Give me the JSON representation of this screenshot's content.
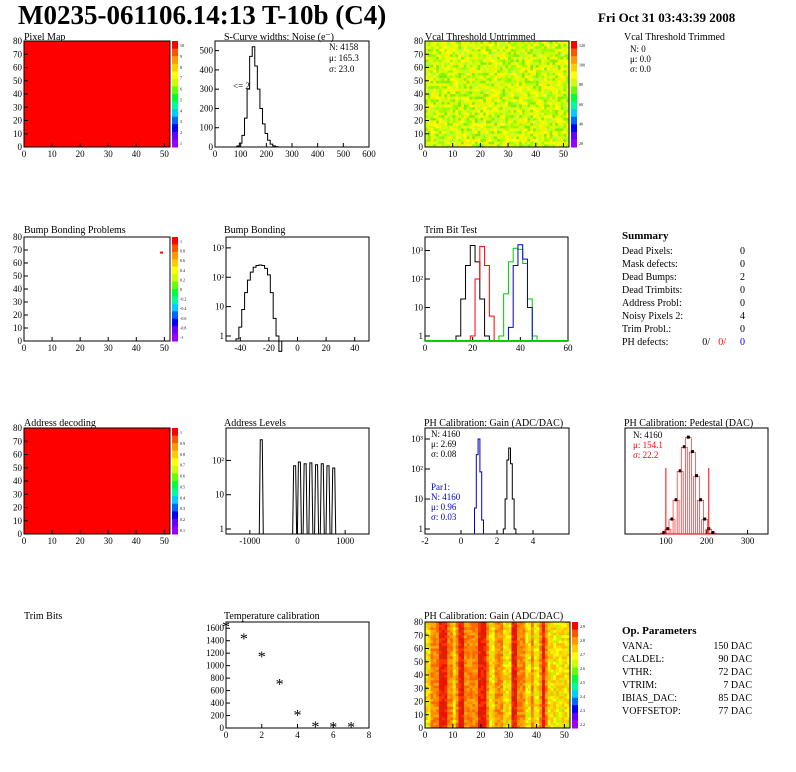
{
  "header": {
    "title": "M0235-061106.14:13 T-10b (C4)",
    "date": "Fri Oct 31 03:43:39 2008"
  },
  "colors": {
    "red": "#ff0000",
    "blue": "#0000cc",
    "green": "#00cc00",
    "black": "#000000"
  },
  "chart_data": [
    {
      "id": "pixel-map",
      "type": "heatmap",
      "title": "Pixel Map",
      "xlim": [
        0,
        52
      ],
      "ylim": [
        0,
        80
      ],
      "xticks": [
        "0",
        "10",
        "20",
        "30",
        "40",
        "50"
      ],
      "yticks": [
        "0",
        "10",
        "20",
        "30",
        "40",
        "50",
        "60",
        "70",
        "80"
      ],
      "palette_ticks": [
        "10",
        "9",
        "8",
        "7",
        "6",
        "5",
        "4",
        "3",
        "2",
        "1"
      ],
      "fill": "uniform red (max)"
    },
    {
      "id": "noise",
      "type": "histogram",
      "title": "S-Curve widths: Noise (e⁻)",
      "xlim": [
        0,
        600
      ],
      "ylim": [
        0,
        550
      ],
      "xticks": [
        "0",
        "100",
        "200",
        "300",
        "400",
        "500",
        "600"
      ],
      "yticks": [
        "0",
        "100",
        "200",
        "300",
        "400",
        "500"
      ],
      "stats": [
        "N: 4158",
        "μ: 165.3",
        "σ: 23.0"
      ],
      "annotation": "<= 2",
      "x": [
        80,
        90,
        100,
        110,
        120,
        130,
        140,
        150,
        160,
        170,
        180,
        190,
        200,
        210,
        220,
        230,
        240,
        250
      ],
      "values": [
        0,
        5,
        20,
        60,
        150,
        300,
        470,
        520,
        420,
        300,
        200,
        120,
        70,
        35,
        15,
        6,
        2,
        0
      ]
    },
    {
      "id": "vcal-untrimmed",
      "type": "heatmap",
      "title": "Vcal Threshold Untrimmed",
      "xlim": [
        0,
        52
      ],
      "ylim": [
        0,
        80
      ],
      "xticks": [
        "0",
        "10",
        "20",
        "30",
        "40",
        "50"
      ],
      "yticks": [
        "0",
        "10",
        "20",
        "30",
        "40",
        "50",
        "60",
        "70",
        "80"
      ],
      "palette_ticks": [
        "120",
        "100",
        "80",
        "60",
        "40",
        "20"
      ],
      "fill": "noisy yellow-green"
    },
    {
      "id": "vcal-trimmed",
      "type": "stats",
      "title": "Vcal Threshold Trimmed",
      "stats": [
        "N:   0",
        "μ:  0.0",
        "σ:  0.0"
      ]
    },
    {
      "id": "bump-problems",
      "type": "heatmap",
      "title": "Bump Bonding Problems",
      "xlim": [
        0,
        52
      ],
      "ylim": [
        0,
        80
      ],
      "xticks": [
        "0",
        "10",
        "20",
        "30",
        "40",
        "50"
      ],
      "yticks": [
        "0",
        "10",
        "20",
        "30",
        "40",
        "50",
        "60",
        "70",
        "80"
      ],
      "palette_ticks": [
        "1",
        "0.8",
        "0.6",
        "0.4",
        "0.2",
        "0",
        "-0.2",
        "-0.4",
        "-0.6",
        "-0.8",
        "-1"
      ],
      "marks": [
        {
          "x": 49,
          "y": 68
        }
      ]
    },
    {
      "id": "bump-bonding",
      "type": "histogram",
      "title": "Bump Bonding",
      "log_y": true,
      "xlim": [
        -50,
        50
      ],
      "xticks": [
        "-40",
        "-20",
        "0",
        "20",
        "40"
      ],
      "yticks": [
        "1",
        "10",
        "10²",
        "10³"
      ],
      "x": [
        -42,
        -40,
        -38,
        -36,
        -34,
        -32,
        -30,
        -28,
        -26,
        -24,
        -22,
        -20,
        -18,
        -16,
        -14,
        -12
      ],
      "values": [
        0.8,
        2,
        8,
        30,
        80,
        150,
        220,
        250,
        260,
        250,
        200,
        120,
        30,
        4,
        1,
        0
      ]
    },
    {
      "id": "trim-bit-test",
      "type": "histogram",
      "title": "Trim Bit Test",
      "log_y": true,
      "xlim": [
        0,
        60
      ],
      "xticks": [
        "0",
        "20",
        "40",
        "60"
      ],
      "yticks": [
        "1",
        "10",
        "10²",
        "10³"
      ],
      "series": [
        {
          "color": "#000000",
          "x": [
            14,
            16,
            18,
            20,
            22,
            24,
            26
          ],
          "values": [
            1,
            20,
            300,
            1500,
            400,
            20,
            1
          ]
        },
        {
          "color": "#ff0000",
          "x": [
            20,
            22,
            24,
            26,
            28
          ],
          "values": [
            1,
            100,
            1400,
            300,
            5
          ]
        },
        {
          "color": "#00cc00",
          "x": [
            32,
            34,
            36,
            38,
            40,
            42,
            44,
            46
          ],
          "values": [
            1,
            30,
            400,
            1200,
            1100,
            350,
            20,
            1
          ]
        },
        {
          "color": "#0000cc",
          "x": [
            36,
            38,
            40,
            42,
            44
          ],
          "values": [
            2,
            300,
            1600,
            500,
            10
          ]
        }
      ]
    },
    {
      "id": "summary",
      "type": "table",
      "title": "Summary",
      "rows": [
        {
          "label": "Dead Pixels:",
          "value": "0"
        },
        {
          "label": "Mask defects:",
          "value": "0"
        },
        {
          "label": "Dead Bumps:",
          "value": "2"
        },
        {
          "label": "Dead Trimbits:",
          "value": "0"
        },
        {
          "label": "Address Probl:",
          "value": "0"
        },
        {
          "label": "Noisy Pixels 2:",
          "value": "4"
        },
        {
          "label": "Trim Probl.:",
          "value": "0"
        }
      ],
      "ph_defects": {
        "label": "PH defects:",
        "v1": "0/",
        "v2": "0/",
        "v3": "0"
      }
    },
    {
      "id": "address-decoding",
      "type": "heatmap",
      "title": "Address decoding",
      "xlim": [
        0,
        52
      ],
      "ylim": [
        0,
        80
      ],
      "xticks": [
        "0",
        "10",
        "20",
        "30",
        "40",
        "50"
      ],
      "yticks": [
        "0",
        "10",
        "20",
        "30",
        "40",
        "50",
        "60",
        "70",
        "80"
      ],
      "palette_ticks": [
        "1",
        "0.9",
        "0.8",
        "0.7",
        "0.6",
        "0.5",
        "0.4",
        "0.3",
        "0.2",
        "0.1"
      ],
      "fill": "uniform red (max)"
    },
    {
      "id": "address-levels",
      "type": "histogram",
      "title": "Address Levels",
      "log_y": true,
      "xlim": [
        -1500,
        1500
      ],
      "xticks": [
        "-1000",
        "0",
        "1000"
      ],
      "yticks": [
        "1",
        "10",
        "10²"
      ],
      "x": [
        -760,
        -60,
        40,
        160,
        280,
        400,
        520,
        640,
        760
      ],
      "values": [
        400,
        70,
        90,
        80,
        85,
        75,
        80,
        70,
        60
      ]
    },
    {
      "id": "ph-gain",
      "type": "histogram",
      "title": "PH Calibration: Gain (ADC/DAC)",
      "log_y": true,
      "xlim": [
        -2,
        6
      ],
      "xticks": [
        "-2",
        "0",
        "2",
        "4"
      ],
      "yticks": [
        "1",
        "10",
        "10²",
        "10³"
      ],
      "stats": [
        "N: 4160",
        "μ: 2.69",
        "σ: 0.08"
      ],
      "stats2": [
        "Par1:",
        "N: 4160",
        "μ: 0.96",
        "σ: 0.03"
      ],
      "series": [
        {
          "color": "#000000",
          "x": [
            2.4,
            2.5,
            2.6,
            2.7,
            2.8,
            2.9,
            3.0
          ],
          "values": [
            1,
            10,
            200,
            500,
            150,
            10,
            1
          ]
        },
        {
          "color": "#0000cc",
          "x": [
            0.8,
            0.9,
            1.0,
            1.1,
            1.2
          ],
          "values": [
            5,
            300,
            1000,
            80,
            2
          ]
        }
      ]
    },
    {
      "id": "ph-pedestal",
      "type": "histogram",
      "title": "PH Calibration: Pedestal (DAC)",
      "xlim": [
        0,
        350
      ],
      "xticks": [
        "100",
        "200",
        "300"
      ],
      "stats": [
        "N: 4160",
        "μ: 154.1",
        "σ: 22.2"
      ],
      "x": [
        95,
        105,
        115,
        125,
        135,
        145,
        155,
        165,
        175,
        185,
        195,
        205,
        215
      ],
      "values": [
        2,
        10,
        30,
        70,
        130,
        180,
        200,
        170,
        120,
        70,
        30,
        10,
        2
      ]
    },
    {
      "id": "trim-bits",
      "type": "empty",
      "title": "Trim Bits"
    },
    {
      "id": "temperature-calibration",
      "type": "scatter",
      "title": "Temperature calibration",
      "xlim": [
        0,
        8
      ],
      "ylim": [
        0,
        1700
      ],
      "xticks": [
        "0",
        "2",
        "4",
        "6",
        "8"
      ],
      "yticks": [
        "0",
        "200",
        "400",
        "600",
        "800",
        "1000",
        "1200",
        "1400",
        "1600"
      ],
      "x": [
        0,
        1,
        2,
        3,
        4,
        5,
        6,
        7
      ],
      "y": [
        1620,
        1430,
        1140,
        700,
        200,
        15,
        10,
        5
      ]
    },
    {
      "id": "ph-gain-map",
      "type": "heatmap",
      "title": "PH Calibration: Gain (ADC/DAC)",
      "xlim": [
        0,
        52
      ],
      "ylim": [
        0,
        80
      ],
      "xticks": [
        "0",
        "10",
        "20",
        "30",
        "40",
        "50"
      ],
      "yticks": [
        "0",
        "10",
        "20",
        "30",
        "40",
        "50",
        "60",
        "70",
        "80"
      ],
      "palette_ticks": [
        "2.9",
        "2.8",
        "2.7",
        "2.6",
        "2.5",
        "2.4",
        "2.3",
        "2.2"
      ],
      "fill": "vertical stripes orange/red/yellow"
    },
    {
      "id": "op-parameters",
      "type": "table",
      "title": "Op. Parameters",
      "rows": [
        {
          "label": "VANA:",
          "value": "150 DAC"
        },
        {
          "label": "CALDEL:",
          "value": "90 DAC"
        },
        {
          "label": "VTHR:",
          "value": "72 DAC"
        },
        {
          "label": "VTRIM:",
          "value": "7 DAC"
        },
        {
          "label": "IBIAS_DAC:",
          "value": "85 DAC"
        },
        {
          "label": "VOFFSETOP:",
          "value": "77 DAC"
        }
      ]
    }
  ]
}
